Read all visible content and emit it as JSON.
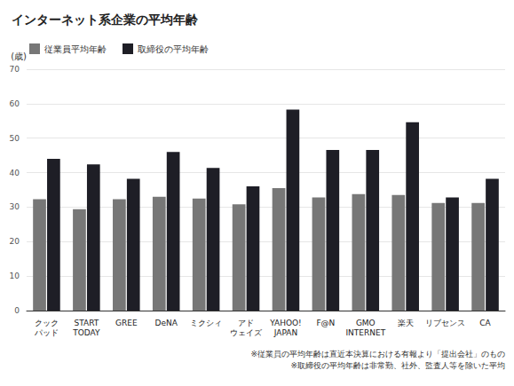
{
  "chart_data": {
    "type": "bar",
    "title": "インターネット系企業の平均年齢",
    "y_label": "(歳)",
    "categories": [
      "クック\nパッド",
      "START\nTODAY",
      "GREE",
      "DeNA",
      "ミクシィ",
      "アド\nウェイズ",
      "YAHOO!\nJAPAN",
      "F@N",
      "GMO\nINTERNET",
      "楽天",
      "リブセンス",
      "CA"
    ],
    "series": [
      {
        "name": "従業員平均年齢",
        "color": "#777777",
        "values": [
          32.3,
          29.4,
          32.3,
          33.0,
          32.5,
          30.8,
          35.5,
          32.8,
          33.8,
          33.5,
          31.2,
          31.2
        ]
      },
      {
        "name": "取締役の平均年齢",
        "color": "#1e1e26",
        "values": [
          44.0,
          42.4,
          38.2,
          46.0,
          41.4,
          36.0,
          58.3,
          46.6,
          46.6,
          54.6,
          32.8,
          38.2
        ]
      }
    ],
    "ylim": [
      0,
      70
    ],
    "yticks": [
      0,
      10,
      20,
      30,
      40,
      50,
      60,
      70
    ],
    "grid": true,
    "legend": "top-left",
    "notes": [
      "※従業員の平均年齢は直近本決算における有報より「提出会社」のもの",
      "※取締役の平均年齢は非常勤、社外、監査人等を除いた平均"
    ]
  }
}
